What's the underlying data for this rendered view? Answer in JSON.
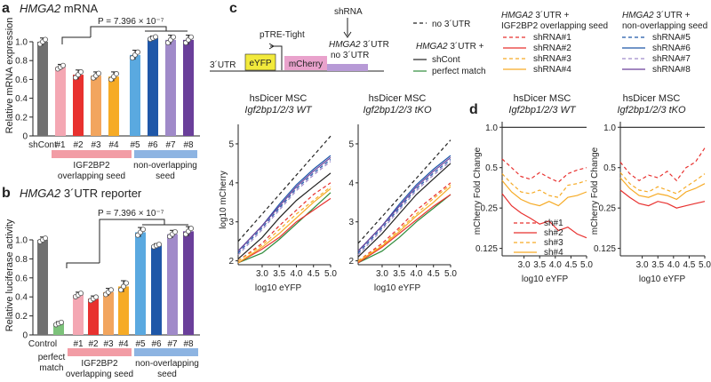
{
  "figure": {
    "panels": {
      "a": {
        "letter": "a",
        "title_gene": "HMGA2",
        "title_rest": " mRNA",
        "pvalue": "P = 7.396 × 10⁻⁷",
        "ylabel": "Relative mRNA expression",
        "group1": "IGF2BP2",
        "group1b": "overlapping seed",
        "group2": "non-overlapping",
        "group2b": "seed"
      },
      "b": {
        "letter": "b",
        "title_gene": "HMGA2",
        "title_rest": " 3´UTR reporter",
        "pvalue": "P = 7.396 × 10⁻⁷",
        "ylabel": "Relative luciferase activity",
        "extra_label_1": "perfect",
        "extra_label_2": "match",
        "group1": "IGF2BP2",
        "group1b": "overlapping seed",
        "group2": "non-overlapping",
        "group2b": "seed"
      },
      "c": {
        "letter": "c",
        "construct": {
          "utr_left": "3´UTR",
          "eyfp": "eYFP",
          "promoter": "pTRE-Tight",
          "mcherry": "mCherry",
          "shrna": "shRNA",
          "gene": "HMGA2",
          "utr_suffix": " 3´UTR",
          "no_utr": "no 3´UTR"
        },
        "legend_main": {
          "no_utr": "no 3´UTR",
          "gene": "HMGA2",
          "utr_plus": " 3´UTR +",
          "shcont": "shCont",
          "perfect": "perfect match"
        },
        "legend_overlap": {
          "gene": "HMGA2",
          "utr_plus": " 3´UTR +",
          "subtitle": "IGF2BP2 overlapping seed",
          "items": [
            "shRNA#1",
            "shRNA#2",
            "shRNA#3",
            "shRNA#4"
          ]
        },
        "legend_nonoverlap": {
          "gene": "HMGA2",
          "utr_plus": " 3´UTR +",
          "subtitle": "non-overlapping seed",
          "items": [
            "shRNA#5",
            "shRNA#6",
            "shRNA#7",
            "shRNA#8"
          ]
        },
        "plot1_title": "hsDicer MSC",
        "plot1_sub": "Igf2bp1/2/3 WT",
        "plot2_title": "hsDicer MSC",
        "plot2_sub": "Igf2bp1/2/3 tKO",
        "xlabel": "log10 eYFP",
        "ylabel": "log10 mCherry"
      },
      "d": {
        "letter": "d",
        "plot1_title": "hsDicer MSC",
        "plot1_sub": "Igf2bp1/2/3 WT",
        "plot2_title": "hsDicer MSC",
        "plot2_sub": "Igf2bp1/2/3 tKO",
        "xlabel": "log10 eYFP",
        "ylabel": "mCherry Fold Change",
        "legend": [
          "sh#1",
          "sh#2",
          "sh#3",
          "sh#4"
        ]
      }
    },
    "colors": {
      "shCont": "#707070",
      "perfect": "#7cc27a",
      "sh1": "#f4a7b3",
      "sh2": "#e8312f",
      "sh3": "#f2a55e",
      "sh4": "#f6ab26",
      "sh5": "#5aa9e0",
      "sh6": "#1f57a8",
      "sh7": "#a08ac9",
      "sh8": "#6a3f9a",
      "overlap_group": "#f29ca5",
      "nonoverlap_group": "#8db4e2",
      "overlap_text": "#e8312f",
      "nonoverlap_text": "#2f5fb5",
      "eyfp_box": "#f2ea3c",
      "mcherry_box": "#e9a2cc",
      "noutr_box": "#b79ad6",
      "green_line": "#2e8b3a"
    }
  },
  "chart_data": [
    {
      "id": "a",
      "type": "bar",
      "title": "HMGA2 mRNA",
      "xlabel": "",
      "ylabel": "Relative mRNA expression",
      "categories": [
        "shCont",
        "#1",
        "#2",
        "#3",
        "#4",
        "#5",
        "#6",
        "#7",
        "#8"
      ],
      "values": [
        1.0,
        0.73,
        0.65,
        0.64,
        0.63,
        0.86,
        1.04,
        1.02,
        1.02
      ],
      "errors": [
        0.04,
        0.03,
        0.05,
        0.04,
        0.05,
        0.05,
        0.02,
        0.05,
        0.05
      ],
      "color_keys": [
        "shCont",
        "sh1",
        "sh2",
        "sh3",
        "sh4",
        "sh5",
        "sh6",
        "sh7",
        "sh8"
      ],
      "ylim": [
        0,
        1.0
      ],
      "yticks": [
        0,
        0.2,
        0.4,
        0.6,
        0.8,
        1.0
      ],
      "ytick_labels": [
        "0",
        "0.2",
        "0.4",
        "0.6",
        "0.8",
        "1.0"
      ]
    },
    {
      "id": "b",
      "type": "bar",
      "title": "HMGA2 3´UTR reporter",
      "xlabel": "",
      "ylabel": "Relative luciferase activity",
      "categories": [
        "Control",
        "perfect match",
        "#1",
        "#2",
        "#3",
        "#4",
        "#5",
        "#6",
        "#7",
        "#8"
      ],
      "values": [
        1.0,
        0.12,
        0.42,
        0.38,
        0.45,
        0.51,
        1.08,
        0.94,
        1.06,
        1.09
      ],
      "errors": [
        0.03,
        0.02,
        0.03,
        0.03,
        0.04,
        0.06,
        0.05,
        0.02,
        0.04,
        0.05
      ],
      "color_keys": [
        "shCont",
        "perfect",
        "sh1",
        "sh2",
        "sh3",
        "sh4",
        "sh5",
        "sh6",
        "sh7",
        "sh8"
      ],
      "ylim": [
        0,
        1.0
      ],
      "yticks": [
        0,
        0.2,
        0.4,
        0.6,
        0.8,
        1.0
      ],
      "ytick_labels": [
        "0",
        "0.2",
        "0.4",
        "0.6",
        "0.8",
        "1.0"
      ]
    },
    {
      "id": "c1",
      "type": "line",
      "title": "hsDicer MSC Igf2bp1/2/3 WT",
      "xlabel": "log10 eYFP",
      "ylabel": "log10 mCherry",
      "xlim": [
        2.3,
        5.0
      ],
      "ylim": [
        1.9,
        5.5
      ],
      "xticks": [
        3.0,
        3.5,
        4.0,
        4.5,
        5.0
      ],
      "yticks": [
        2,
        3,
        4,
        5
      ],
      "series": [
        {
          "name": "no 3´UTR",
          "color_key": "black",
          "dash": "dashed",
          "x": [
            2.3,
            5.0
          ],
          "y": [
            2.5,
            5.2
          ]
        },
        {
          "name": "shCont",
          "color_key": "black",
          "dash": "solid",
          "x": [
            2.3,
            3.0,
            3.5,
            4.0,
            4.5,
            5.0
          ],
          "y": [
            2.05,
            2.6,
            3.1,
            3.55,
            3.9,
            4.25
          ]
        },
        {
          "name": "perfect match",
          "color_key": "green_line",
          "dash": "solid",
          "x": [
            2.3,
            3.0,
            3.5,
            4.0,
            4.5,
            5.0
          ],
          "y": [
            1.95,
            2.2,
            2.55,
            2.95,
            3.35,
            3.75
          ]
        },
        {
          "name": "shRNA#1",
          "color_key": "sh2",
          "dash": "dashed",
          "x": [
            2.3,
            3.0,
            3.5,
            4.0,
            4.5,
            5.0
          ],
          "y": [
            2.0,
            2.45,
            2.9,
            3.3,
            3.7,
            4.0
          ]
        },
        {
          "name": "shRNA#2",
          "color_key": "sh2",
          "dash": "solid",
          "x": [
            2.3,
            3.0,
            3.5,
            4.0,
            4.5,
            5.0
          ],
          "y": [
            1.95,
            2.3,
            2.6,
            3.0,
            3.3,
            3.6
          ]
        },
        {
          "name": "shRNA#3",
          "color_key": "sh4",
          "dash": "dashed",
          "x": [
            2.3,
            3.0,
            3.5,
            4.0,
            4.5,
            5.0
          ],
          "y": [
            2.0,
            2.4,
            2.8,
            3.2,
            3.55,
            3.9
          ]
        },
        {
          "name": "shRNA#4",
          "color_key": "sh4",
          "dash": "solid",
          "x": [
            2.3,
            3.0,
            3.5,
            4.0,
            4.5,
            5.0
          ],
          "y": [
            1.95,
            2.35,
            2.7,
            3.1,
            3.5,
            3.85
          ]
        },
        {
          "name": "shRNA#5",
          "color_key": "sh6",
          "dash": "dashed",
          "x": [
            2.3,
            3.0,
            3.5,
            4.0,
            4.5,
            5.0
          ],
          "y": [
            2.2,
            2.85,
            3.35,
            3.85,
            4.25,
            4.6
          ]
        },
        {
          "name": "shRNA#6",
          "color_key": "sh6",
          "dash": "solid",
          "x": [
            2.3,
            3.0,
            3.5,
            4.0,
            4.5,
            5.0
          ],
          "y": [
            2.25,
            2.9,
            3.45,
            3.95,
            4.35,
            4.7
          ]
        },
        {
          "name": "shRNA#7",
          "color_key": "sh7",
          "dash": "dashed",
          "x": [
            2.3,
            3.0,
            3.5,
            4.0,
            4.5,
            5.0
          ],
          "y": [
            2.15,
            2.8,
            3.3,
            3.8,
            4.2,
            4.55
          ]
        },
        {
          "name": "shRNA#8",
          "color_key": "sh8",
          "dash": "solid",
          "x": [
            2.3,
            3.0,
            3.5,
            4.0,
            4.5,
            5.0
          ],
          "y": [
            2.25,
            2.9,
            3.4,
            3.9,
            4.3,
            4.65
          ]
        }
      ]
    },
    {
      "id": "c2",
      "type": "line",
      "title": "hsDicer MSC Igf2bp1/2/3 tKO",
      "xlabel": "log10 eYFP",
      "ylabel": "",
      "xlim": [
        2.3,
        5.0
      ],
      "ylim": [
        1.9,
        5.5
      ],
      "xticks": [
        3.0,
        3.5,
        4.0,
        4.5,
        5.0
      ],
      "yticks": [
        2,
        3,
        4,
        5
      ],
      "series": [
        {
          "name": "no 3´UTR",
          "color_key": "black",
          "dash": "dashed",
          "x": [
            2.3,
            5.0
          ],
          "y": [
            2.45,
            5.1
          ]
        },
        {
          "name": "shCont",
          "color_key": "black",
          "dash": "solid",
          "x": [
            2.3,
            3.0,
            3.5,
            4.0,
            4.5,
            5.0
          ],
          "y": [
            2.1,
            2.7,
            3.2,
            3.7,
            4.1,
            4.5
          ]
        },
        {
          "name": "perfect match",
          "color_key": "green_line",
          "dash": "solid",
          "x": [
            2.3,
            3.0,
            3.5,
            4.0,
            4.5,
            5.0
          ],
          "y": [
            1.95,
            2.25,
            2.6,
            3.0,
            3.35,
            3.7
          ]
        },
        {
          "name": "shRNA#1",
          "color_key": "sh2",
          "dash": "dashed",
          "x": [
            2.3,
            3.0,
            3.5,
            4.0,
            4.5,
            5.0
          ],
          "y": [
            2.0,
            2.45,
            2.85,
            3.3,
            3.65,
            4.0
          ]
        },
        {
          "name": "shRNA#2",
          "color_key": "sh2",
          "dash": "solid",
          "x": [
            2.3,
            3.0,
            3.5,
            4.0,
            4.5,
            5.0
          ],
          "y": [
            1.95,
            2.35,
            2.7,
            3.05,
            3.4,
            3.7
          ]
        },
        {
          "name": "shRNA#3",
          "color_key": "sh4",
          "dash": "dashed",
          "x": [
            2.3,
            3.0,
            3.5,
            4.0,
            4.5,
            5.0
          ],
          "y": [
            2.0,
            2.4,
            2.8,
            3.2,
            3.6,
            3.95
          ]
        },
        {
          "name": "shRNA#4",
          "color_key": "sh4",
          "dash": "solid",
          "x": [
            2.3,
            3.0,
            3.5,
            4.0,
            4.5,
            5.0
          ],
          "y": [
            1.98,
            2.38,
            2.75,
            3.15,
            3.5,
            3.9
          ]
        },
        {
          "name": "shRNA#5",
          "color_key": "sh6",
          "dash": "dashed",
          "x": [
            2.3,
            3.0,
            3.5,
            4.0,
            4.5,
            5.0
          ],
          "y": [
            2.2,
            2.85,
            3.35,
            3.85,
            4.25,
            4.6
          ]
        },
        {
          "name": "shRNA#6",
          "color_key": "sh6",
          "dash": "solid",
          "x": [
            2.3,
            3.0,
            3.5,
            4.0,
            4.5,
            5.0
          ],
          "y": [
            2.25,
            2.9,
            3.45,
            3.95,
            4.35,
            4.7
          ]
        },
        {
          "name": "shRNA#7",
          "color_key": "sh7",
          "dash": "dashed",
          "x": [
            2.3,
            3.0,
            3.5,
            4.0,
            4.5,
            5.0
          ],
          "y": [
            2.15,
            2.8,
            3.3,
            3.8,
            4.2,
            4.55
          ]
        },
        {
          "name": "shRNA#8",
          "color_key": "sh8",
          "dash": "solid",
          "x": [
            2.3,
            3.0,
            3.5,
            4.0,
            4.5,
            5.0
          ],
          "y": [
            2.25,
            2.9,
            3.4,
            3.9,
            4.3,
            4.65
          ]
        }
      ]
    },
    {
      "id": "d1",
      "type": "line",
      "title": "hsDicer MSC Igf2bp1/2/3 WT",
      "xlabel": "log10 eYFP",
      "ylabel": "mCherry Fold Change",
      "xlim": [
        2.3,
        5.0
      ],
      "ylim": [
        0.11,
        1.1
      ],
      "ylog": true,
      "xticks": [
        3.0,
        3.5,
        4.0,
        4.5,
        5.0
      ],
      "yticks": [
        0.125,
        0.25,
        0.5,
        1.0
      ],
      "ytick_labels": [
        "0.125",
        "0.25",
        "0.5",
        "1.0"
      ],
      "series": [
        {
          "name": "reference",
          "color_key": "black",
          "dash": "solid",
          "x": [
            2.3,
            5.0
          ],
          "y": [
            1.0,
            1.0
          ]
        },
        {
          "name": "sh#1",
          "color_key": "sh2",
          "dash": "dashed",
          "x": [
            2.3,
            2.6,
            2.9,
            3.2,
            3.5,
            3.8,
            4.1,
            4.4,
            4.7,
            5.0
          ],
          "y": [
            0.58,
            0.5,
            0.43,
            0.41,
            0.46,
            0.42,
            0.39,
            0.45,
            0.48,
            0.5
          ]
        },
        {
          "name": "sh#2",
          "color_key": "sh2",
          "dash": "solid",
          "x": [
            2.3,
            2.6,
            2.9,
            3.2,
            3.5,
            3.8,
            4.1,
            4.4,
            4.7,
            5.0
          ],
          "y": [
            0.32,
            0.26,
            0.23,
            0.21,
            0.19,
            0.2,
            0.17,
            0.18,
            0.16,
            0.15
          ]
        },
        {
          "name": "sh#3",
          "color_key": "sh4",
          "dash": "dashed",
          "x": [
            2.3,
            2.6,
            2.9,
            3.2,
            3.5,
            3.8,
            4.1,
            4.4,
            4.7,
            5.0
          ],
          "y": [
            0.45,
            0.38,
            0.33,
            0.32,
            0.34,
            0.31,
            0.3,
            0.37,
            0.38,
            0.4
          ]
        },
        {
          "name": "sh#4",
          "color_key": "sh4",
          "dash": "solid",
          "x": [
            2.3,
            2.6,
            2.9,
            3.2,
            3.5,
            3.8,
            4.1,
            4.4,
            4.7,
            5.0
          ],
          "y": [
            0.4,
            0.33,
            0.29,
            0.27,
            0.26,
            0.28,
            0.26,
            0.3,
            0.31,
            0.33
          ]
        }
      ]
    },
    {
      "id": "d2",
      "type": "line",
      "title": "hsDicer MSC Igf2bp1/2/3 tKO",
      "xlabel": "log10 eYFP",
      "ylabel": "",
      "xlim": [
        2.3,
        5.0
      ],
      "ylim": [
        0.11,
        1.1
      ],
      "ylog": true,
      "xticks": [
        3.0,
        3.5,
        4.0,
        4.5,
        5.0
      ],
      "yticks": [
        0.125,
        0.25,
        0.5,
        1.0
      ],
      "ytick_labels": [
        "0.125",
        "0.25",
        "0.5",
        "1.0"
      ],
      "series": [
        {
          "name": "reference",
          "color_key": "black",
          "dash": "solid",
          "x": [
            2.3,
            5.0
          ],
          "y": [
            1.0,
            1.0
          ]
        },
        {
          "name": "sh#1",
          "color_key": "sh2",
          "dash": "dashed",
          "x": [
            2.3,
            2.6,
            2.9,
            3.2,
            3.5,
            3.8,
            4.1,
            4.4,
            4.7,
            5.0
          ],
          "y": [
            0.55,
            0.45,
            0.4,
            0.44,
            0.42,
            0.47,
            0.4,
            0.5,
            0.55,
            0.7
          ]
        },
        {
          "name": "sh#2",
          "color_key": "sh2",
          "dash": "solid",
          "x": [
            2.3,
            2.6,
            2.9,
            3.2,
            3.5,
            3.8,
            4.1,
            4.4,
            4.7,
            5.0
          ],
          "y": [
            0.34,
            0.3,
            0.27,
            0.26,
            0.28,
            0.27,
            0.25,
            0.26,
            0.27,
            0.28
          ]
        },
        {
          "name": "sh#3",
          "color_key": "sh4",
          "dash": "dashed",
          "x": [
            2.3,
            2.6,
            2.9,
            3.2,
            3.5,
            3.8,
            4.1,
            4.4,
            4.7,
            5.0
          ],
          "y": [
            0.46,
            0.38,
            0.34,
            0.33,
            0.36,
            0.34,
            0.32,
            0.36,
            0.4,
            0.45
          ]
        },
        {
          "name": "sh#4",
          "color_key": "sh4",
          "dash": "solid",
          "x": [
            2.3,
            2.6,
            2.9,
            3.2,
            3.5,
            3.8,
            4.1,
            4.4,
            4.7,
            5.0
          ],
          "y": [
            0.42,
            0.35,
            0.31,
            0.3,
            0.32,
            0.31,
            0.29,
            0.33,
            0.35,
            0.38
          ]
        }
      ]
    }
  ]
}
